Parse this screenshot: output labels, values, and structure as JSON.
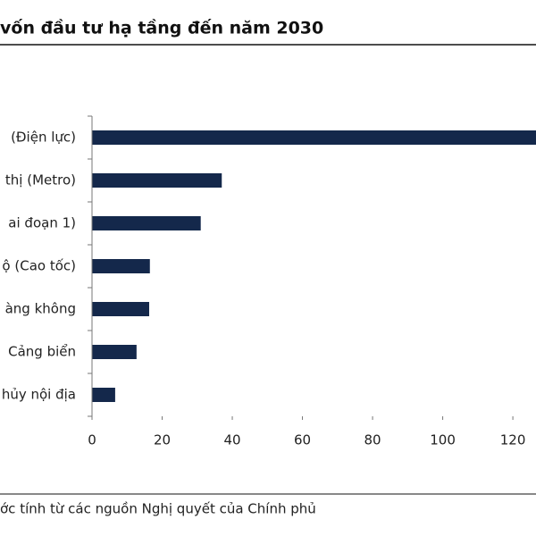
{
  "chart_data": {
    "type": "bar",
    "orientation": "horizontal",
    "title": "vốn đầu tư hạ tầng đến năm 2030",
    "categories": [
      "(Điện lực)",
      "thị (Metro)",
      "ai đoạn 1)",
      "ộ (Cao tốc)",
      "àng không",
      "Cảng biển",
      "hủy nội địa"
    ],
    "values": [
      130,
      37,
      31,
      16.5,
      16.3,
      12.7,
      6.6
    ],
    "color": "#14284b",
    "xlim": [
      0,
      126.6
    ],
    "xticks": [
      0,
      20,
      40,
      60,
      80,
      100,
      120
    ],
    "source": "ớc tính từ các nguồn Nghị quyết của Chính phủ"
  }
}
